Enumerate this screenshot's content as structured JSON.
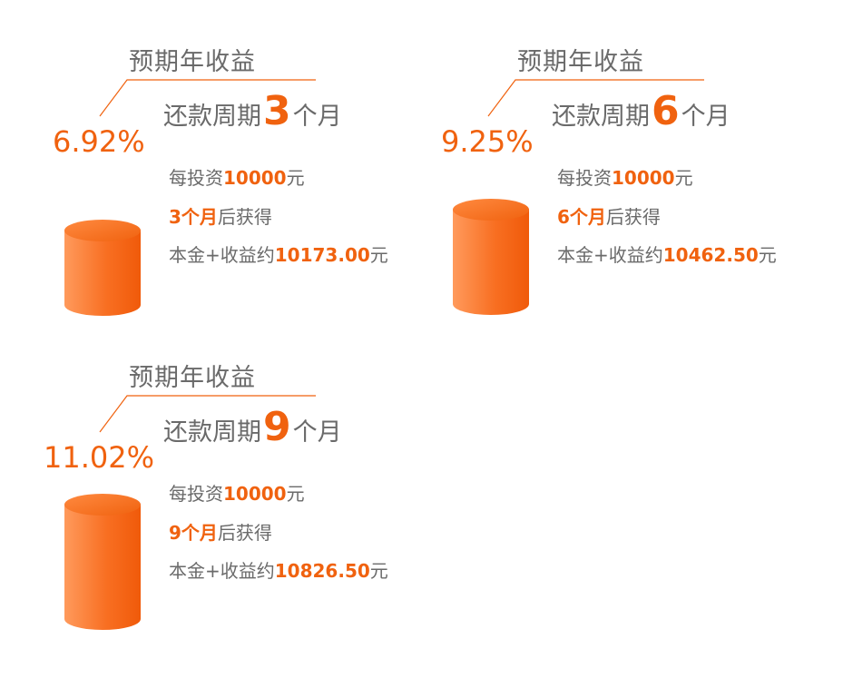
{
  "colors": {
    "accent": "#f0620f",
    "text": "#6a6a6a",
    "cylinder_light": "#ffa56a",
    "cylinder_dark": "#f05a0a"
  },
  "cards": [
    {
      "annual_label": "预期年收益",
      "rate": "6.92%",
      "term_prefix": "还款周期",
      "term_num": "3",
      "term_suffix": "个月",
      "invest_prefix": "每投资",
      "invest_amount": "10000",
      "invest_unit": "元",
      "period_hl": "3个月",
      "period_rest": "后获得",
      "total_prefix": "本金+收益约",
      "total_amount": "10173.00",
      "total_unit": "元"
    },
    {
      "annual_label": "预期年收益",
      "rate": "9.25%",
      "term_prefix": "还款周期",
      "term_num": "6",
      "term_suffix": "个月",
      "invest_prefix": "每投资",
      "invest_amount": "10000",
      "invest_unit": "元",
      "period_hl": "6个月",
      "period_rest": "后获得",
      "total_prefix": "本金+收益约",
      "total_amount": "10462.50",
      "total_unit": "元"
    },
    {
      "annual_label": "预期年收益",
      "rate": "11.02%",
      "term_prefix": "还款周期",
      "term_num": "9",
      "term_suffix": "个月",
      "invest_prefix": "每投资",
      "invest_amount": "10000",
      "invest_unit": "元",
      "period_hl": "9个月",
      "period_rest": "后获得",
      "total_prefix": "本金+收益约",
      "total_amount": "10826.50",
      "total_unit": "元"
    }
  ]
}
